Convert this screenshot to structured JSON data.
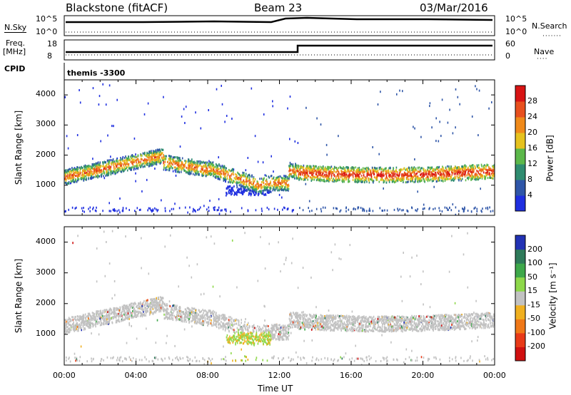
{
  "header": {
    "station": "Blackstone (fitACF)",
    "beam": "Beam 23",
    "date": "03/Mar/2016"
  },
  "top_panels": {
    "nsky_label": "N.Sky",
    "nsearch_label": "N.Search",
    "nsky_ticks": [
      "10^5",
      "10^0"
    ],
    "nsearch_ticks": [
      "10^5",
      "10^0"
    ],
    "freq_label": "Freq.",
    "freq_unit": "[MHz]",
    "freq_ticks": [
      "18",
      "8"
    ],
    "nave_label": "Nave",
    "nave_ticks": [
      "60",
      "0"
    ],
    "cpid_label": "CPID",
    "cpid_value": "themis -3300"
  },
  "chart_data": [
    {
      "type": "heatmap",
      "name": "power",
      "ylabel": "Slant Range [km]",
      "ylim": [
        0,
        4500
      ],
      "yticks": [
        1000,
        2000,
        3000,
        4000
      ],
      "xlim": [
        0,
        24
      ],
      "colorbar_label": "Power [dB]",
      "colorbar_ticks": [
        "4",
        "8",
        "12",
        "16",
        "20",
        "24",
        "28"
      ],
      "colors": [
        "#1f2fe0",
        "#2f56a8",
        "#2f8c70",
        "#5cb84a",
        "#e6c21e",
        "#f08a1a",
        "#e8501e",
        "#d81414"
      ]
    },
    {
      "type": "heatmap",
      "name": "velocity",
      "ylabel": "Slant Range [km]",
      "ylim": [
        0,
        4500
      ],
      "yticks": [
        1000,
        2000,
        3000,
        4000
      ],
      "xlim": [
        0,
        24
      ],
      "xlabel": "Time UT",
      "xticks": [
        "00:00",
        "04:00",
        "08:00",
        "12:00",
        "16:00",
        "20:00",
        "00:00"
      ],
      "colorbar_label": "Velocity [m s⁻¹]",
      "colorbar_ticks": [
        "200",
        "100",
        "50",
        "15",
        "-15",
        "-50",
        "-100",
        "-200"
      ],
      "colors": [
        "#2232b4",
        "#2e7a5a",
        "#3ea84a",
        "#8ed84a",
        "#c2c2c2",
        "#f0b020",
        "#f07818",
        "#e83a18",
        "#d01010"
      ]
    }
  ]
}
